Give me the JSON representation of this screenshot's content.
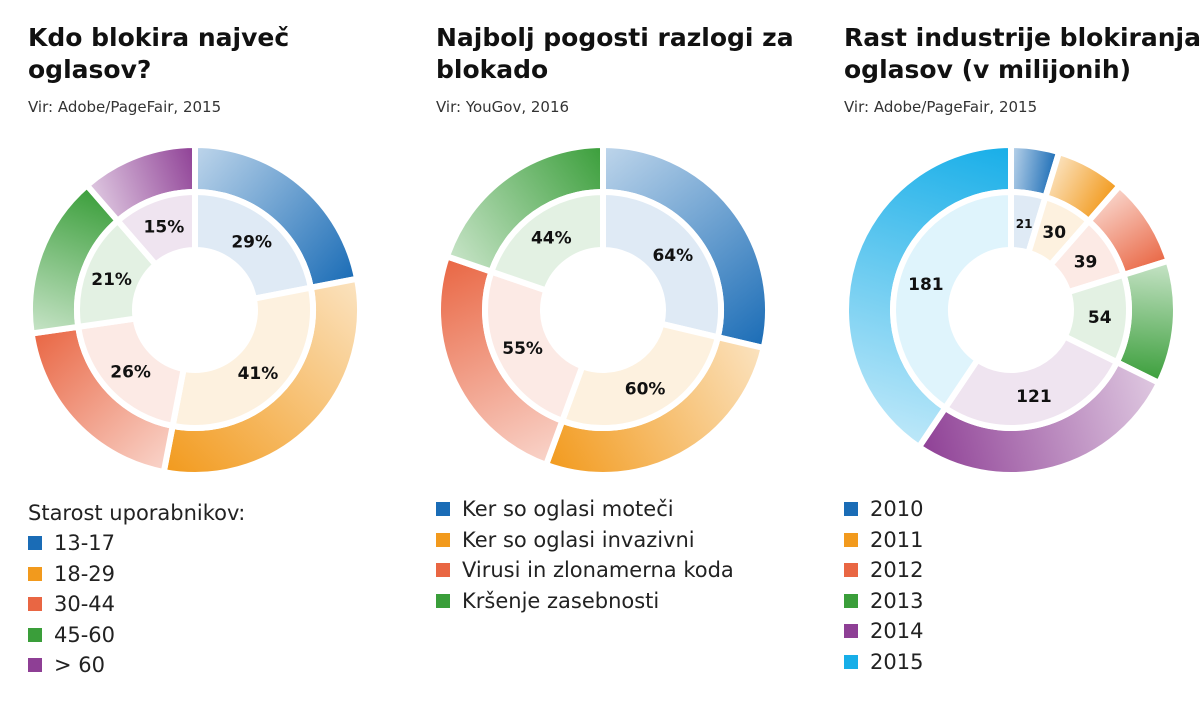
{
  "chart_data": [
    {
      "type": "pie",
      "title": "Kdo blokira največ oglasov?",
      "source": "Vir: Adobe/PageFair, 2015",
      "legend_title": "Starost uporabnikov:",
      "categories": [
        "13-17",
        "18-29",
        "30-44",
        "45-60",
        "> 60"
      ],
      "values": [
        29,
        41,
        26,
        21,
        15
      ],
      "labels": [
        "29%",
        "41%",
        "26%",
        "21%",
        "15%"
      ],
      "colors": [
        "#1a6cb6",
        "#f29a1d",
        "#e96643",
        "#3a9e3a",
        "#8e3f95"
      ],
      "legend_placement": "bottom"
    },
    {
      "type": "pie",
      "title": "Najbolj pogosti razlogi za blokado",
      "source": "Vir: YouGov, 2016",
      "categories": [
        "Ker so oglasi moteči",
        "Ker so oglasi invazivni",
        "Virusi in zlonamerna koda",
        "Kršenje zasebnosti"
      ],
      "values": [
        64,
        60,
        55,
        44
      ],
      "labels": [
        "64%",
        "60%",
        "55%",
        "44%"
      ],
      "colors": [
        "#1a6cb6",
        "#f29a1d",
        "#e96643",
        "#3a9e3a"
      ],
      "legend_placement": "bottom"
    },
    {
      "type": "pie",
      "title": "Rast industrije blokiranja oglasov (v milijonih)",
      "source": "Vir: Adobe/PageFair, 2015",
      "categories": [
        "2010",
        "2011",
        "2012",
        "2013",
        "2014",
        "2015"
      ],
      "values": [
        21,
        30,
        39,
        54,
        121,
        181
      ],
      "labels": [
        "21",
        "30",
        "39",
        "54",
        "121",
        "181"
      ],
      "colors": [
        "#1a6cb6",
        "#f29a1d",
        "#e96643",
        "#3a9e3a",
        "#8e3f95",
        "#17aee8"
      ],
      "legend_placement": "bottom"
    }
  ]
}
